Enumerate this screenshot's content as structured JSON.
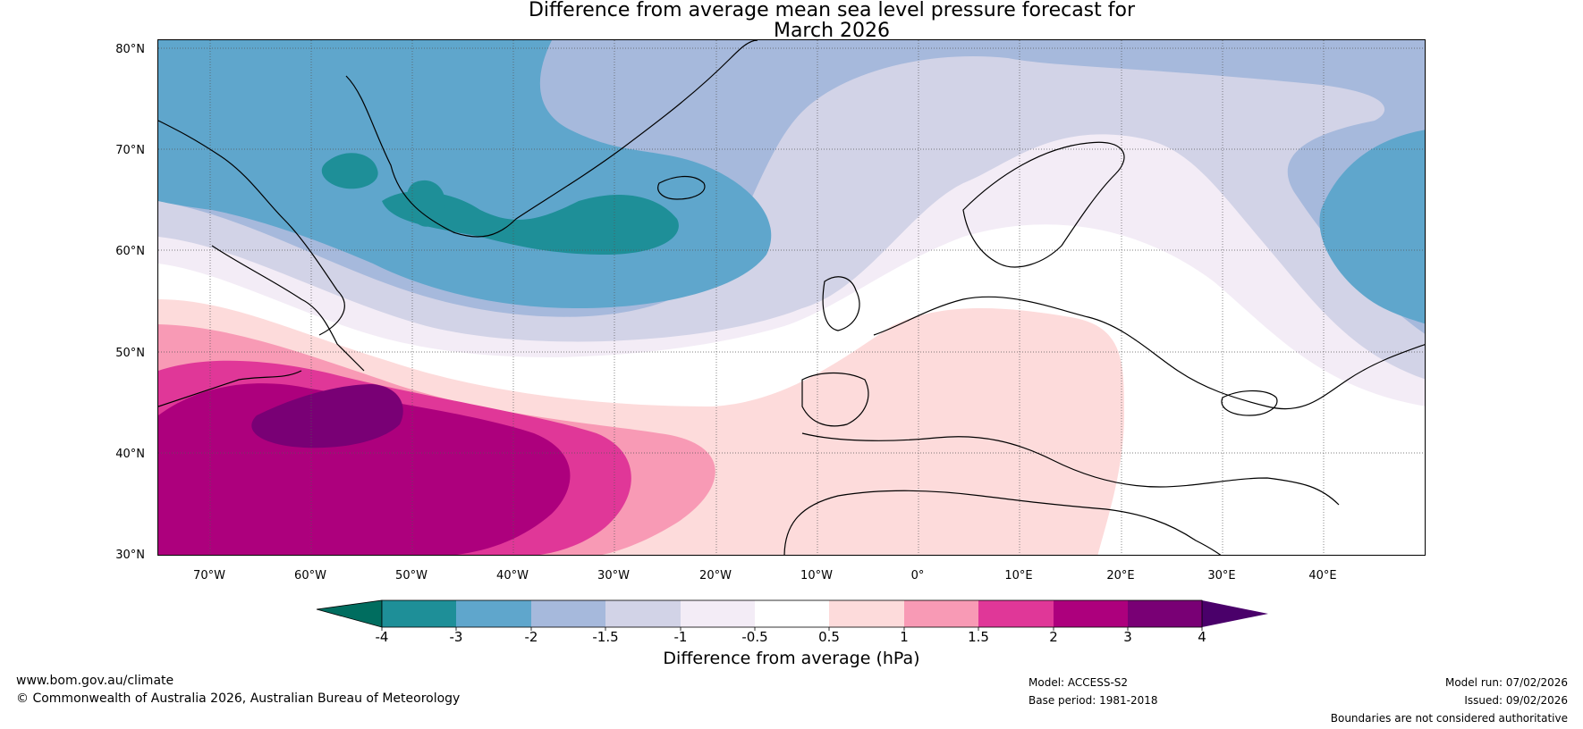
{
  "title": {
    "line1": "Difference from average mean sea level pressure forecast for",
    "line2": "March 2026"
  },
  "map": {
    "lat_labels": [
      "80°N",
      "70°N",
      "60°N",
      "50°N",
      "40°N",
      "30°N"
    ],
    "lon_labels": [
      "70°W",
      "60°W",
      "50°W",
      "40°W",
      "30°W",
      "20°W",
      "10°W",
      "0°",
      "10°E",
      "20°E",
      "30°E",
      "40°E"
    ],
    "colors": {
      "lt_neg4": "#006d5f",
      "neg4_neg3": "#1e8f98",
      "neg3_neg2": "#5fa6cc",
      "neg2_neg15": "#a6b9dc",
      "neg15_neg1": "#d2d3e7",
      "neg1_neg05": "#f3ecf6",
      "neg05_05": "#ffffff",
      "p05_1": "#fddbdb",
      "p1_15": "#f89ab5",
      "p15_2": "#e03798",
      "p2_3": "#ad007d",
      "p3_4": "#790075",
      "gt4": "#4a006a"
    }
  },
  "colorbar": {
    "tick_labels": [
      "-4",
      "-3",
      "-2",
      "-1.5",
      "-1",
      "-0.5",
      "0.5",
      "1",
      "1.5",
      "2",
      "3",
      "4"
    ],
    "title": "Difference from average (hPa)"
  },
  "footer": {
    "website": "www.bom.gov.au/climate",
    "copyright": "© Commonwealth of Australia 2026, Australian Bureau of Meteorology",
    "model": "Model: ACCESS-S2",
    "base_period": "Base period: 1981-2018",
    "model_run": "Model run: 07/02/2026",
    "issued": "Issued: 09/02/2026",
    "disclaimer": "Boundaries are not considered authoritative"
  }
}
